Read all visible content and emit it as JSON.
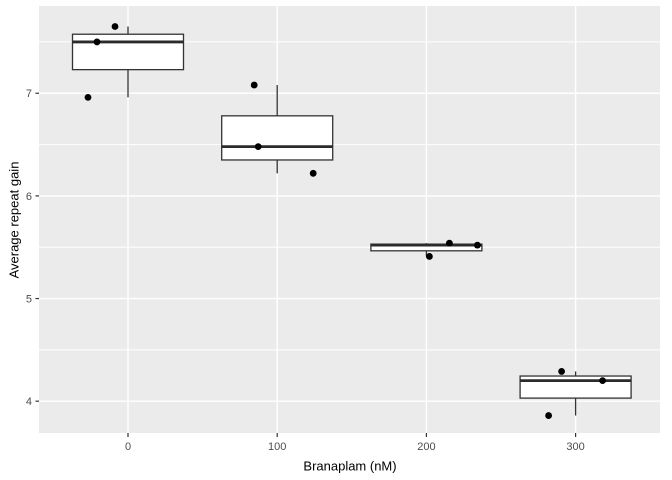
{
  "chart_data": {
    "type": "boxplot",
    "title": "",
    "xlabel": "Branaplam (nM)",
    "ylabel": "Average repeat gain",
    "x_categories": [
      "0",
      "100",
      "200",
      "300"
    ],
    "y_ticks": [
      4,
      5,
      6,
      7
    ],
    "y_minor_ticks": [
      4.5,
      5.5,
      6.5,
      7.5
    ],
    "ylim": [
      3.69,
      7.85
    ],
    "grid": "grey panel, white major and minor horizontal gridlines, white vertical gridline at each category, no legend",
    "groups": [
      {
        "category": "0",
        "values": [
          6.96,
          7.5,
          7.65
        ],
        "stats": {
          "min": 6.96,
          "q1": 7.23,
          "median": 7.5,
          "q3": 7.575,
          "max": 7.65
        },
        "points": [
          {
            "v": 7.65,
            "dx": -13
          },
          {
            "v": 7.5,
            "dx": -31
          },
          {
            "v": 6.96,
            "dx": -40
          }
        ]
      },
      {
        "category": "100",
        "values": [
          6.22,
          6.48,
          7.08
        ],
        "stats": {
          "min": 6.22,
          "q1": 6.35,
          "median": 6.48,
          "q3": 6.78,
          "max": 7.08
        },
        "points": [
          {
            "v": 7.08,
            "dx": -23
          },
          {
            "v": 6.48,
            "dx": -19
          },
          {
            "v": 6.22,
            "dx": 36
          }
        ]
      },
      {
        "category": "200",
        "values": [
          5.41,
          5.52,
          5.54
        ],
        "stats": {
          "min": 5.41,
          "q1": 5.465,
          "median": 5.52,
          "q3": 5.53,
          "max": 5.54
        },
        "points": [
          {
            "v": 5.54,
            "dx": 23
          },
          {
            "v": 5.52,
            "dx": 51
          },
          {
            "v": 5.41,
            "dx": 3
          }
        ]
      },
      {
        "category": "300",
        "values": [
          3.86,
          4.2,
          4.29
        ],
        "stats": {
          "min": 3.86,
          "q1": 4.03,
          "median": 4.2,
          "q3": 4.245,
          "max": 4.29
        },
        "points": [
          {
            "v": 4.29,
            "dx": -14
          },
          {
            "v": 4.2,
            "dx": 27
          },
          {
            "v": 3.86,
            "dx": -27
          }
        ]
      }
    ]
  },
  "style": {
    "panel_bg": "#EBEBEB",
    "grid_color": "#FFFFFF",
    "box_fill": "#FFFFFF",
    "box_stroke": "#333333",
    "median_stroke": "#2B2B2B",
    "point_color": "#000000",
    "tick_color": "#333333",
    "axis_text_color": "#4D4D4D",
    "outer_bg": "#FFFFFF"
  }
}
